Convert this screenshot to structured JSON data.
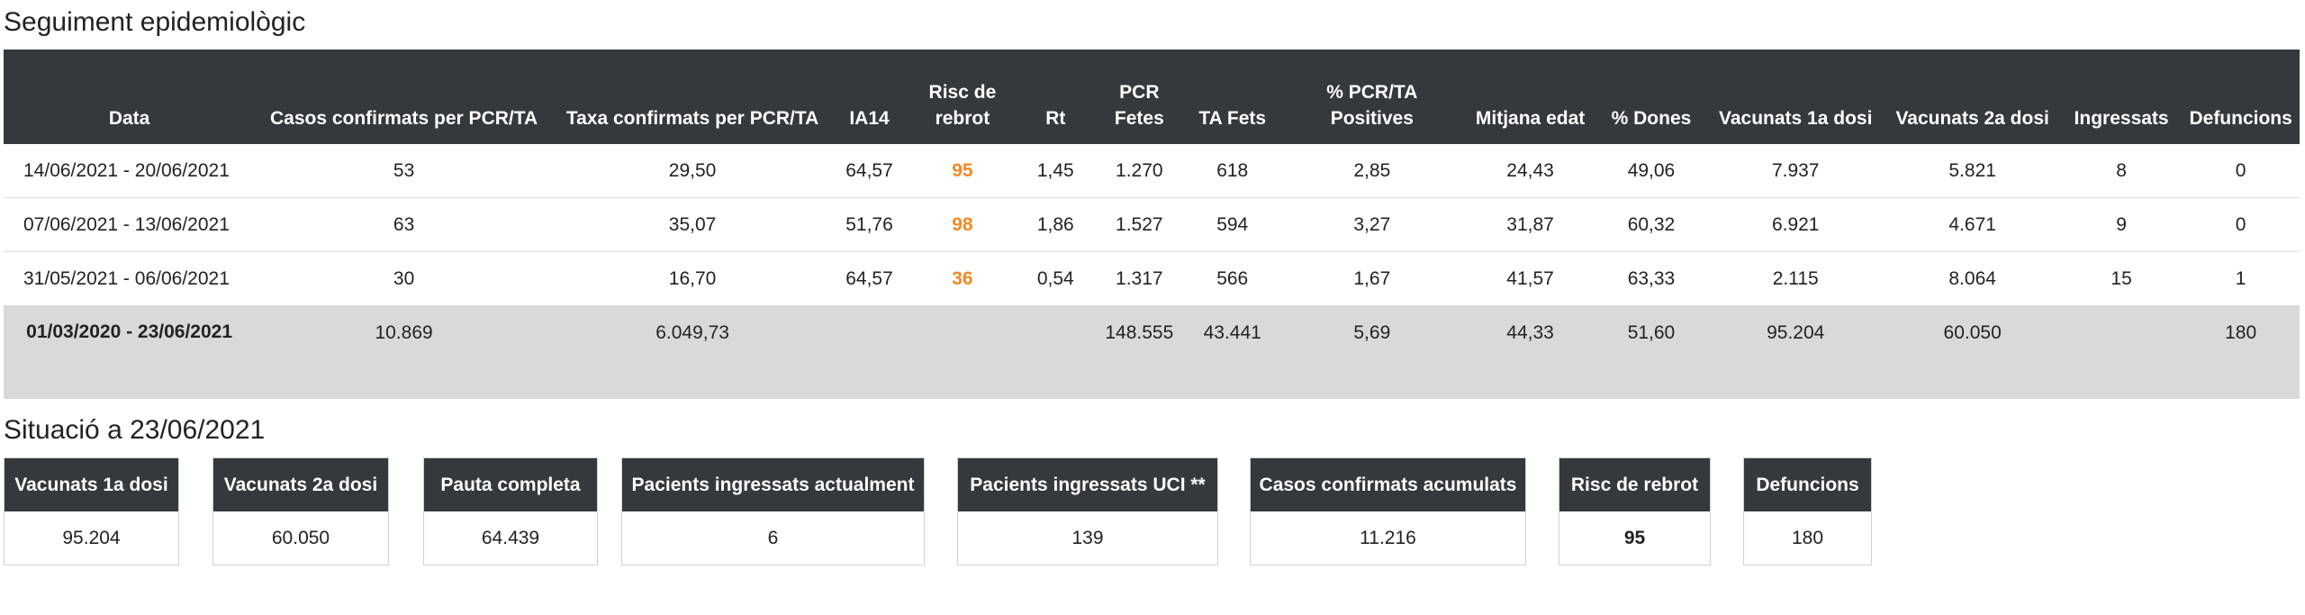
{
  "sections": {
    "tracking_title": "Seguiment epidemiològic",
    "status_title": "Situació a 23/06/2021"
  },
  "table": {
    "headers": [
      "Data",
      "Casos confirmats per PCR/TA",
      "Taxa confirmats per PCR/TA",
      "IA14",
      "Risc de rebrot",
      "Rt",
      "PCR Fetes",
      "TA Fets",
      "% PCR/TA Positives",
      "Mitjana edat",
      "% Dones",
      "Vacunats 1a dosi",
      "Vacunats 2a dosi",
      "Ingressats",
      "Defuncions"
    ],
    "rows": [
      [
        "14/06/2021 - 20/06/2021",
        "53",
        "29,50",
        "64,57",
        "95",
        "1,45",
        "1.270",
        "618",
        "2,85",
        "24,43",
        "49,06",
        "7.937",
        "5.821",
        "8",
        "0"
      ],
      [
        "07/06/2021 - 13/06/2021",
        "63",
        "35,07",
        "51,76",
        "98",
        "1,86",
        "1.527",
        "594",
        "3,27",
        "31,87",
        "60,32",
        "6.921",
        "4.671",
        "9",
        "0"
      ],
      [
        "31/05/2021 - 06/06/2021",
        "30",
        "16,70",
        "64,57",
        "36",
        "0,54",
        "1.317",
        "566",
        "1,67",
        "41,57",
        "63,33",
        "2.115",
        "8.064",
        "15",
        "1"
      ]
    ],
    "total": [
      "01/03/2020 - 23/06/2021",
      "10.869",
      "6.049,73",
      "",
      "",
      "",
      "148.555",
      "43.441",
      "5,69",
      "44,33",
      "51,60",
      "95.204",
      "60.050",
      "",
      "180"
    ]
  },
  "cards": [
    {
      "label": "Vacunats 1a dosi",
      "value": "95.204"
    },
    {
      "label": "Vacunats 2a dosi",
      "value": "60.050"
    },
    {
      "label": "Pauta completa",
      "value": "64.439"
    },
    {
      "label": "Pacients ingressats actualment",
      "value": "6"
    },
    {
      "label": "Pacients ingressats UCI **",
      "value": "139"
    },
    {
      "label": "Casos confirmats acumulats",
      "value": "11.216"
    },
    {
      "label": "Risc de rebrot",
      "value": "95"
    },
    {
      "label": "Defuncions",
      "value": "180"
    }
  ],
  "colors": {
    "header_bg": "#34393e",
    "risk_accent": "#f08a24",
    "total_row_bg": "#d9d9d9"
  }
}
